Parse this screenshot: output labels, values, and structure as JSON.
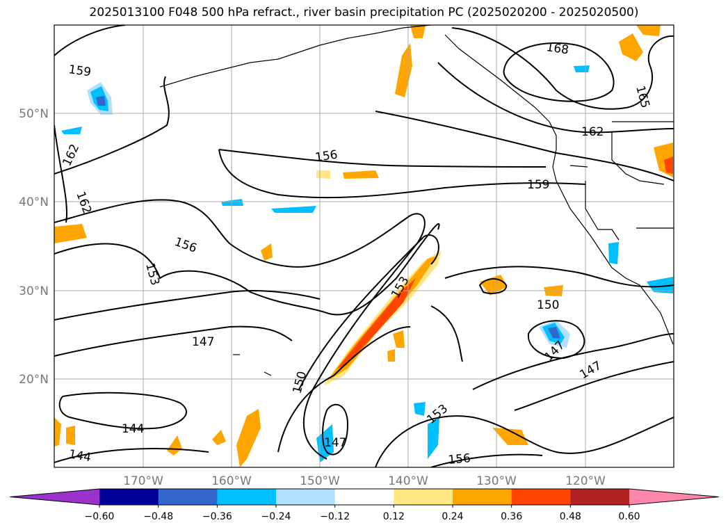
{
  "title": "2025013100 F048 500 hPa refract., river basin precipitation PC (2025020200 - 2025020500)",
  "lat_labels": [
    "50°N",
    "40°N",
    "30°N",
    "20°N"
  ],
  "lon_labels": [
    "170°W",
    "160°W",
    "150°W",
    "140°W",
    "130°W",
    "120°W"
  ],
  "contour_labels": [
    "159",
    "168",
    "165",
    "162",
    "162",
    "162",
    "156",
    "159",
    "156",
    "153",
    "153",
    "150",
    "147",
    "147",
    "147",
    "150",
    "144",
    "144",
    "147",
    "153",
    "156"
  ],
  "colorbar": {
    "ticks": [
      "−0.60",
      "−0.48",
      "−0.36",
      "−0.24",
      "−0.12",
      "0.12",
      "0.24",
      "0.36",
      "0.48",
      "0.60"
    ],
    "colors": [
      "#9933cc",
      "#000099",
      "#3366cc",
      "#00bfff",
      "#b0e0ff",
      "#ffffff",
      "#ffe680",
      "#ffa500",
      "#ff4500",
      "#b22222",
      "#ff88aa"
    ]
  },
  "colors": {
    "grid": "#aaaaaa",
    "land": "#000000",
    "tick_label": "#777777"
  }
}
